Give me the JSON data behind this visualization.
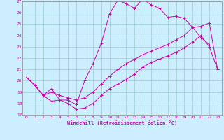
{
  "xlabel": "Windchill (Refroidissement éolien,°C)",
  "bg_color": "#cceeff",
  "grid_color": "#99cccc",
  "line_color": "#cc00aa",
  "xlim": [
    -0.5,
    23.5
  ],
  "ylim": [
    17,
    27
  ],
  "yticks": [
    17,
    18,
    19,
    20,
    21,
    22,
    23,
    24,
    25,
    26,
    27
  ],
  "xticks": [
    0,
    1,
    2,
    3,
    4,
    5,
    6,
    7,
    8,
    9,
    10,
    11,
    12,
    13,
    14,
    15,
    16,
    17,
    18,
    19,
    20,
    21,
    22,
    23
  ],
  "line1_x": [
    0,
    1,
    2,
    3,
    4,
    5,
    6,
    7,
    8,
    9,
    10,
    11,
    12,
    13,
    14,
    15,
    16,
    17,
    18,
    19,
    20,
    21,
    22,
    23
  ],
  "line1_y": [
    20.3,
    19.6,
    18.7,
    18.2,
    18.3,
    18.0,
    17.5,
    17.6,
    18.0,
    18.7,
    19.3,
    19.7,
    20.1,
    20.6,
    21.2,
    21.6,
    21.9,
    22.2,
    22.5,
    22.9,
    23.4,
    24.0,
    23.0,
    21.0
  ],
  "line2_x": [
    0,
    1,
    2,
    3,
    4,
    5,
    6,
    7,
    8,
    9,
    10,
    11,
    12,
    13,
    14,
    15,
    16,
    17,
    18,
    19,
    20,
    21,
    22
  ],
  "line2_y": [
    20.3,
    19.6,
    18.7,
    19.3,
    18.3,
    18.3,
    17.9,
    20.0,
    21.5,
    23.3,
    25.9,
    27.1,
    26.8,
    26.4,
    27.2,
    26.7,
    26.4,
    25.6,
    25.7,
    25.5,
    24.7,
    23.8,
    23.2
  ],
  "line3_x": [
    0,
    1,
    2,
    3,
    4,
    5,
    6,
    7,
    8,
    9,
    10,
    11,
    12,
    13,
    14,
    15,
    16,
    17,
    18,
    19,
    20,
    21,
    22,
    23
  ],
  "line3_y": [
    20.3,
    19.6,
    18.7,
    19.0,
    18.7,
    18.5,
    18.3,
    18.5,
    19.0,
    19.7,
    20.4,
    21.0,
    21.5,
    21.9,
    22.3,
    22.6,
    22.9,
    23.2,
    23.6,
    24.0,
    24.7,
    24.8,
    25.1,
    21.0
  ]
}
